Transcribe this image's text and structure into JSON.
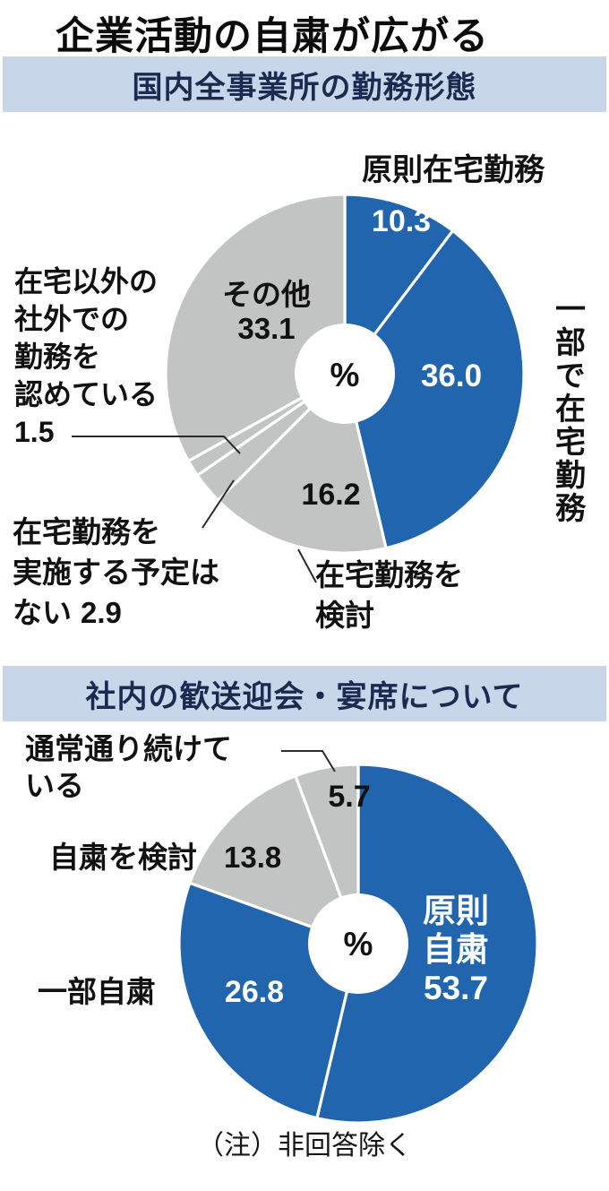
{
  "page": {
    "title": "企業活動の自粛が広がる",
    "note": "（注）非回答除く"
  },
  "sections": [
    {
      "header": "国内全事業所の勤務形態"
    },
    {
      "header": "社内の歓送迎会・宴席について"
    }
  ],
  "colors": {
    "blue": "#2065ad",
    "gray": "#c2c3c3",
    "header_bg": "#c7d6e8",
    "header_text": "#1a2a50",
    "leader_line": "#2b2b2b"
  },
  "chart_data": [
    {
      "type": "pie",
      "title": "国内全事業所の勤務形態",
      "unit": "%",
      "center_label": "%",
      "donut": true,
      "series": [
        {
          "label": "原則在宅勤務",
          "value": 10.3,
          "display": "10.3",
          "color": "blue"
        },
        {
          "label": "一部で在宅勤務",
          "value": 36.0,
          "display": "36.0",
          "color": "blue"
        },
        {
          "label": "在宅勤務を検討",
          "value": 16.2,
          "display": "16.2",
          "color": "gray"
        },
        {
          "label": "在宅勤務を実施する予定はない",
          "value": 2.9,
          "display": "2.9",
          "color": "gray",
          "label_lines": [
            "在宅勤務を",
            "実施する予定は",
            "ない"
          ]
        },
        {
          "label": "在宅以外の社外での勤務を認めている",
          "value": 1.5,
          "display": "1.5",
          "color": "gray",
          "label_lines": [
            "在宅以外の",
            "社外での",
            "勤務を",
            "認めている"
          ]
        },
        {
          "label": "その他",
          "value": 33.1,
          "display": "33.1",
          "color": "gray"
        }
      ]
    },
    {
      "type": "pie",
      "title": "社内の歓送迎会・宴席について",
      "unit": "%",
      "center_label": "%",
      "donut": true,
      "series": [
        {
          "label": "原則自粛",
          "value": 53.7,
          "display": "53.7",
          "color": "blue",
          "label_lines": [
            "原則",
            "自粛"
          ]
        },
        {
          "label": "一部自粛",
          "value": 26.8,
          "display": "26.8",
          "color": "blue"
        },
        {
          "label": "自粛を検討",
          "value": 13.8,
          "display": "13.8",
          "color": "gray"
        },
        {
          "label": "通常通り続けている",
          "value": 5.7,
          "display": "5.7",
          "color": "gray"
        }
      ]
    }
  ]
}
